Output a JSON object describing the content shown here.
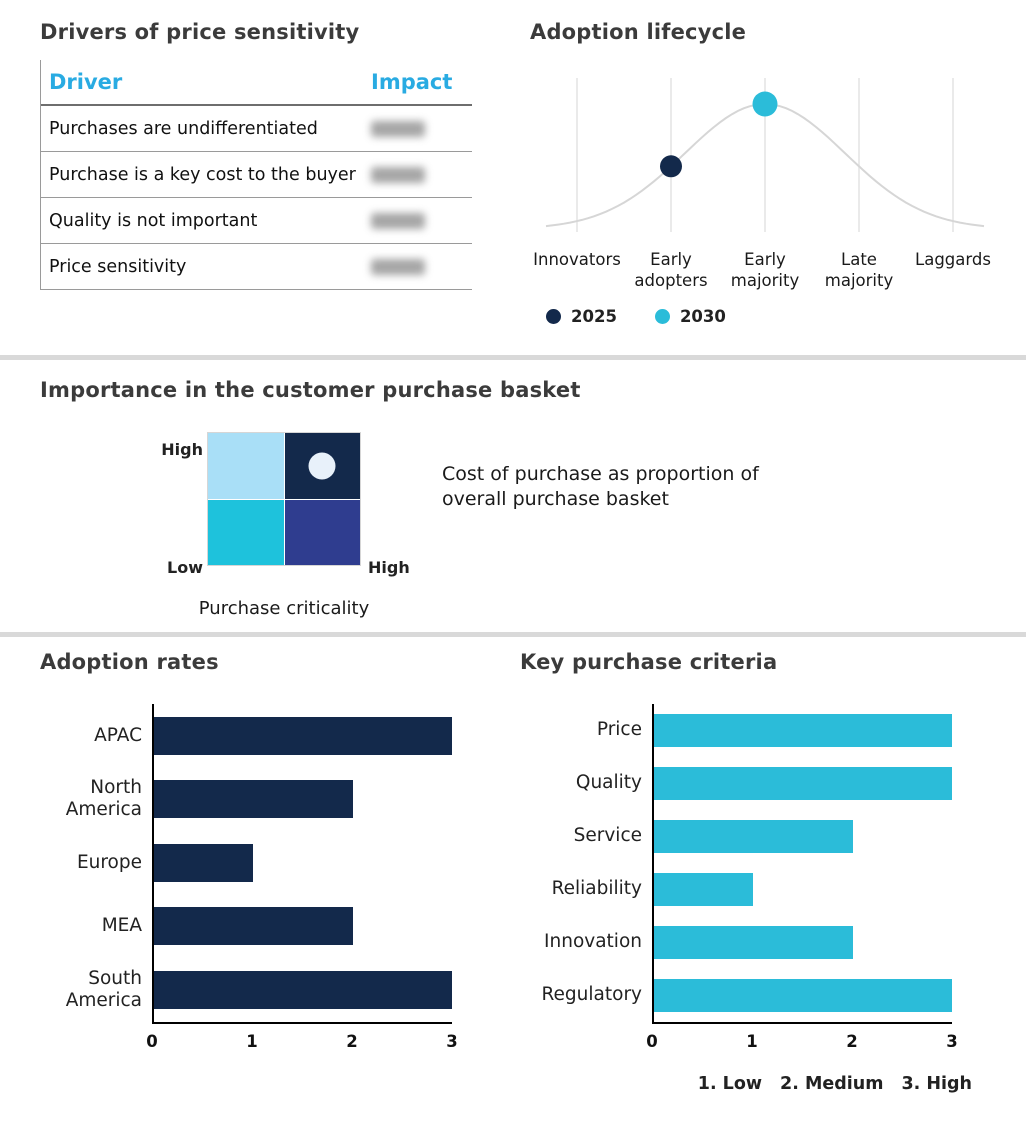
{
  "colors": {
    "navy": "#13294B",
    "cyan": "#2BBCD9",
    "header_cyan": "#29ABE2",
    "light_blue": "#A9DFF7",
    "indigo": "#2F3D8F",
    "marker_light": "#E8F1FA",
    "curve_gray": "#D6D6D6",
    "divider_gray": "#D9D9D9"
  },
  "price_sensitivity": {
    "title": "Drivers of price sensitivity",
    "columns": {
      "driver": "Driver",
      "impact": "Impact"
    },
    "impact_values_blurred": true,
    "rows": [
      {
        "driver": "Purchases are undifferentiated"
      },
      {
        "driver": "Purchase is a key cost to the buyer"
      },
      {
        "driver": "Quality is not important"
      },
      {
        "driver": "Price sensitivity"
      }
    ]
  },
  "chart_data": [
    {
      "id": "adoption-lifecycle",
      "type": "line",
      "title": "Adoption lifecycle",
      "curve": "bell",
      "grid": "vertical",
      "categories": [
        "Innovators",
        "Early adopters",
        "Early majority",
        "Late majority",
        "Laggards"
      ],
      "points": [
        {
          "label": "2025",
          "category": "Early adopters",
          "category_index": 1,
          "color": "#13294B"
        },
        {
          "label": "2030",
          "category": "Early majority",
          "category_index": 2,
          "color": "#2BBCD9"
        }
      ],
      "legend": [
        {
          "label": "2025",
          "color": "#13294B"
        },
        {
          "label": "2030",
          "color": "#2BBCD9"
        }
      ],
      "legend_position": "bottom"
    },
    {
      "id": "purchase-basket-matrix",
      "type": "heatmap",
      "title": "Importance in the customer purchase basket",
      "x_axis_label": "Purchase criticality",
      "y_high": "High",
      "y_low": "Low",
      "x_high": "High",
      "annotation": "Cost of purchase as proportion of overall purchase basket",
      "quadrants": [
        {
          "position": "top-left",
          "color": "#A9DFF7"
        },
        {
          "position": "top-right",
          "color": "#13294B",
          "marker": true,
          "marker_color": "#E8F1FA"
        },
        {
          "position": "bottom-left",
          "color": "#1EC2DC"
        },
        {
          "position": "bottom-right",
          "color": "#2F3D8F"
        }
      ]
    },
    {
      "id": "adoption-rates",
      "type": "bar",
      "orientation": "horizontal",
      "title": "Adoption rates",
      "categories": [
        "APAC",
        "North America",
        "Europe",
        "MEA",
        "South America"
      ],
      "values": [
        3,
        2,
        1,
        2,
        3
      ],
      "xlim": [
        0,
        3
      ],
      "ticks": [
        0,
        1,
        2,
        3
      ],
      "bar_color": "#13294B",
      "grid": false
    },
    {
      "id": "key-purchase-criteria",
      "type": "bar",
      "orientation": "horizontal",
      "title": "Key purchase criteria",
      "categories": [
        "Price",
        "Quality",
        "Service",
        "Reliability",
        "Innovation",
        "Regulatory"
      ],
      "values": [
        3,
        3,
        2,
        1,
        2,
        3
      ],
      "xlim": [
        0,
        3
      ],
      "ticks": [
        0,
        1,
        2,
        3
      ],
      "bar_color": "#2BBCD9",
      "scale_legend": [
        "1. Low",
        "2. Medium",
        "3. High"
      ],
      "grid": false
    }
  ]
}
